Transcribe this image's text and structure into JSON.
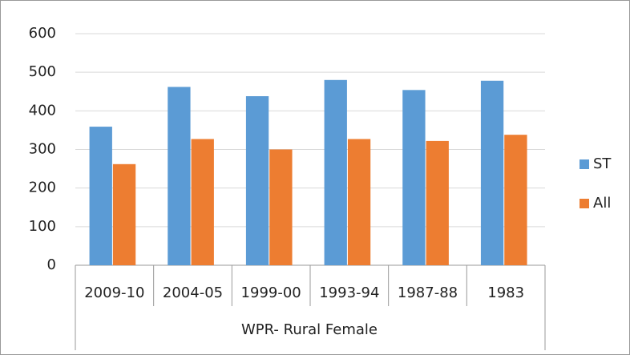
{
  "chart_data": {
    "type": "bar",
    "xlabel": "WPR- Rural Female",
    "categories": [
      "2009-10",
      "2004-05",
      "1999-00",
      "1993-94",
      "1987-88",
      "1983"
    ],
    "series": [
      {
        "name": "ST",
        "color": "#5b9bd5",
        "values": [
          359,
          462,
          438,
          480,
          454,
          478
        ]
      },
      {
        "name": "All",
        "color": "#ed7d31",
        "values": [
          262,
          327,
          300,
          327,
          322,
          338
        ]
      }
    ],
    "ylim": [
      0,
      600
    ],
    "yticks": [
      0,
      100,
      200,
      300,
      400,
      500,
      600
    ],
    "grid": true,
    "legend": "right"
  }
}
